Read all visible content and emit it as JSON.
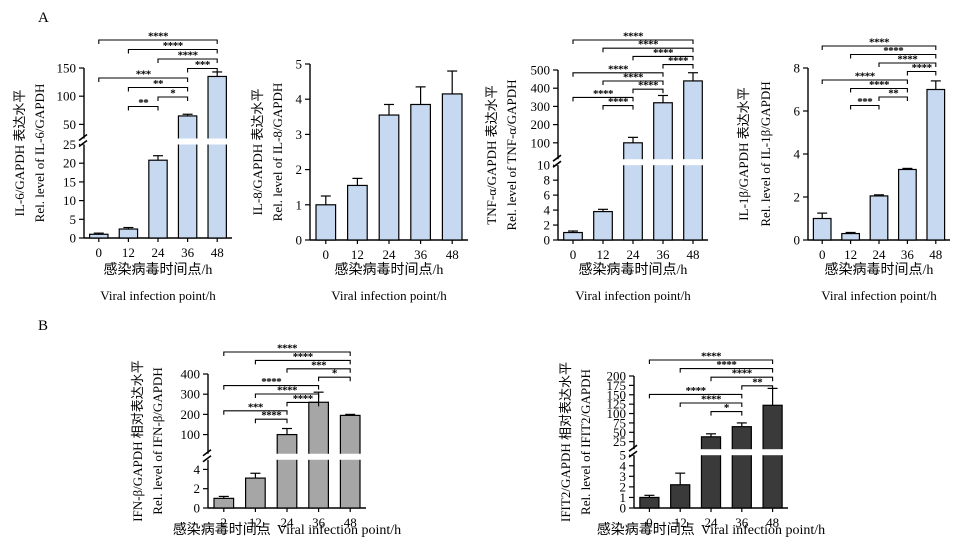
{
  "panels": {
    "A": "A",
    "B": "B"
  },
  "chart_data": [
    {
      "id": "il6",
      "type": "bar",
      "panel": "A",
      "categories": [
        "0",
        "12",
        "24",
        "36",
        "48"
      ],
      "values": [
        1.0,
        2.4,
        20.8,
        65,
        135
      ],
      "errors": [
        0.3,
        0.4,
        1.2,
        3,
        8
      ],
      "ylabel_cn": "IL-6/GAPDH 表达水平",
      "ylabel_en": "Rel. level of IL-6/GAPDH",
      "xlabel_cn": "感染病毒时间点/h",
      "xlabel_en": "Viral infection point/h",
      "y_break": {
        "lower": [
          0,
          25
        ],
        "upper": [
          25,
          150
        ]
      },
      "lower_ticks": [
        0,
        5,
        10,
        15,
        20,
        25
      ],
      "upper_ticks": [
        50,
        100,
        150
      ],
      "bar_color": "#c6d9f1",
      "significance": [
        {
          "from": "0",
          "to": "48",
          "label": "****"
        },
        {
          "from": "12",
          "to": "48",
          "label": "****"
        },
        {
          "from": "24",
          "to": "48",
          "label": "****"
        },
        {
          "from": "36",
          "to": "48",
          "label": "***"
        },
        {
          "from": "0",
          "to": "36",
          "label": "***"
        },
        {
          "from": "12",
          "to": "36",
          "label": "**"
        },
        {
          "from": "24",
          "to": "36",
          "label": "*"
        },
        {
          "from": "12",
          "to": "24",
          "label": "**"
        }
      ]
    },
    {
      "id": "il8",
      "type": "bar",
      "panel": "A",
      "categories": [
        "0",
        "12",
        "24",
        "36",
        "48"
      ],
      "values": [
        1.0,
        1.55,
        3.55,
        3.85,
        4.15
      ],
      "errors": [
        0.25,
        0.2,
        0.3,
        0.5,
        0.65
      ],
      "ylabel_cn": "IL-8/GAPDH 表达水平",
      "ylabel_en": "Rel. level of IL-8/GAPDH",
      "xlabel_cn": "感染病毒时间点/h",
      "xlabel_en": "Viral infection point/h",
      "ylim": [
        0,
        5
      ],
      "ticks": [
        0,
        1,
        2,
        3,
        4,
        5
      ],
      "bar_color": "#c6d9f1",
      "significance": []
    },
    {
      "id": "tnf",
      "type": "bar",
      "panel": "A",
      "categories": [
        "0",
        "12",
        "24",
        "36",
        "48"
      ],
      "values": [
        1.0,
        3.8,
        100,
        320,
        440
      ],
      "errors": [
        0.2,
        0.3,
        30,
        40,
        45
      ],
      "ylabel_cn": "TNF-α/GAPDH 表达水平",
      "ylabel_en": "Rel. level of TNF-α/GAPDH",
      "xlabel_cn": "感染病毒时间点/h",
      "xlabel_en": "Viral infection point/h",
      "y_break": {
        "lower": [
          0,
          10
        ],
        "upper": [
          10,
          500
        ]
      },
      "lower_ticks": [
        0,
        2,
        4,
        6,
        8,
        10
      ],
      "upper_ticks": [
        100,
        200,
        300,
        400,
        500
      ],
      "bar_color": "#c6d9f1",
      "significance": [
        {
          "from": "0",
          "to": "48",
          "label": "****"
        },
        {
          "from": "12",
          "to": "48",
          "label": "****"
        },
        {
          "from": "24",
          "to": "48",
          "label": "****"
        },
        {
          "from": "36",
          "to": "48",
          "label": "****"
        },
        {
          "from": "0",
          "to": "36",
          "label": "****"
        },
        {
          "from": "12",
          "to": "36",
          "label": "****"
        },
        {
          "from": "24",
          "to": "36",
          "label": "****"
        },
        {
          "from": "0",
          "to": "24",
          "label": "****"
        },
        {
          "from": "12",
          "to": "24",
          "label": "****"
        }
      ]
    },
    {
      "id": "il1b",
      "type": "bar",
      "panel": "A",
      "categories": [
        "0",
        "12",
        "24",
        "36",
        "48"
      ],
      "values": [
        1.0,
        0.3,
        2.05,
        3.28,
        7.0
      ],
      "errors": [
        0.25,
        0.05,
        0.05,
        0.05,
        0.4
      ],
      "ylabel_cn": "IL-1β/GAPDH 表达水平",
      "ylabel_en": "Rel. level of IL-1β/GAPDH",
      "xlabel_cn": "感染病毒时间点/h",
      "xlabel_en": "Viral infection point/h",
      "ylim": [
        0,
        8
      ],
      "ticks": [
        0,
        2,
        4,
        6,
        8
      ],
      "bar_color": "#c6d9f1",
      "significance": [
        {
          "from": "0",
          "to": "48",
          "label": "****"
        },
        {
          "from": "12",
          "to": "48",
          "label": "****"
        },
        {
          "from": "24",
          "to": "48",
          "label": "****"
        },
        {
          "from": "36",
          "to": "48",
          "label": "****"
        },
        {
          "from": "0",
          "to": "36",
          "label": "****"
        },
        {
          "from": "12",
          "to": "36",
          "label": "****"
        },
        {
          "from": "24",
          "to": "36",
          "label": "**"
        },
        {
          "from": "12",
          "to": "24",
          "label": "***"
        }
      ]
    },
    {
      "id": "ifnb",
      "type": "bar",
      "panel": "B",
      "categories": [
        "2",
        "12",
        "24",
        "36",
        "48"
      ],
      "values": [
        1.0,
        3.1,
        100,
        260,
        195
      ],
      "errors": [
        0.2,
        0.5,
        30,
        50,
        5
      ],
      "ylabel_cn": "IFN-β/GAPDH 相对表达水平",
      "ylabel_en": "Rel. level of IFN-β/GAPDH",
      "xlabel_cn": "感染病毒时间点",
      "xlabel_en": "Viral infection point/h",
      "y_break": {
        "lower": [
          0,
          5
        ],
        "upper": [
          5,
          400
        ]
      },
      "lower_ticks": [
        0,
        2,
        4
      ],
      "upper_ticks": [
        100,
        200,
        300,
        400
      ],
      "bar_color": "#a6a6a6",
      "significance": [
        {
          "from": "2",
          "to": "48",
          "label": "****"
        },
        {
          "from": "12",
          "to": "48",
          "label": "****"
        },
        {
          "from": "24",
          "to": "48",
          "label": "***"
        },
        {
          "from": "36",
          "to": "48",
          "label": "*"
        },
        {
          "from": "2",
          "to": "36",
          "label": "****"
        },
        {
          "from": "12",
          "to": "36",
          "label": "****"
        },
        {
          "from": "24",
          "to": "36",
          "label": "****"
        },
        {
          "from": "2",
          "to": "24",
          "label": "***"
        },
        {
          "from": "12",
          "to": "24",
          "label": "****"
        }
      ]
    },
    {
      "id": "ifit2",
      "type": "bar",
      "panel": "B",
      "categories": [
        "0",
        "12",
        "24",
        "36",
        "48"
      ],
      "values": [
        1.0,
        2.2,
        38,
        65,
        122
      ],
      "errors": [
        0.2,
        1.1,
        8,
        10,
        45
      ],
      "ylabel_cn": "IFIT2/GAPDH 相对表达水平",
      "ylabel_en": "Rel. level of IFIT2/GAPDH",
      "xlabel_cn": "感染病毒时间点",
      "xlabel_en": "Viral infection point/h",
      "y_break": {
        "lower": [
          0,
          5
        ],
        "upper": [
          5,
          200
        ]
      },
      "lower_ticks": [
        0,
        1,
        2,
        3,
        4,
        5
      ],
      "upper_ticks": [
        25,
        50,
        75,
        100,
        125,
        150,
        175,
        200
      ],
      "bar_color": "#3a3a3a",
      "significance": [
        {
          "from": "0",
          "to": "48",
          "label": "****"
        },
        {
          "from": "12",
          "to": "48",
          "label": "****"
        },
        {
          "from": "24",
          "to": "48",
          "label": "****"
        },
        {
          "from": "36",
          "to": "48",
          "label": "**"
        },
        {
          "from": "0",
          "to": "36",
          "label": "****"
        },
        {
          "from": "12",
          "to": "36",
          "label": "****"
        },
        {
          "from": "24",
          "to": "36",
          "label": "*"
        }
      ]
    }
  ]
}
